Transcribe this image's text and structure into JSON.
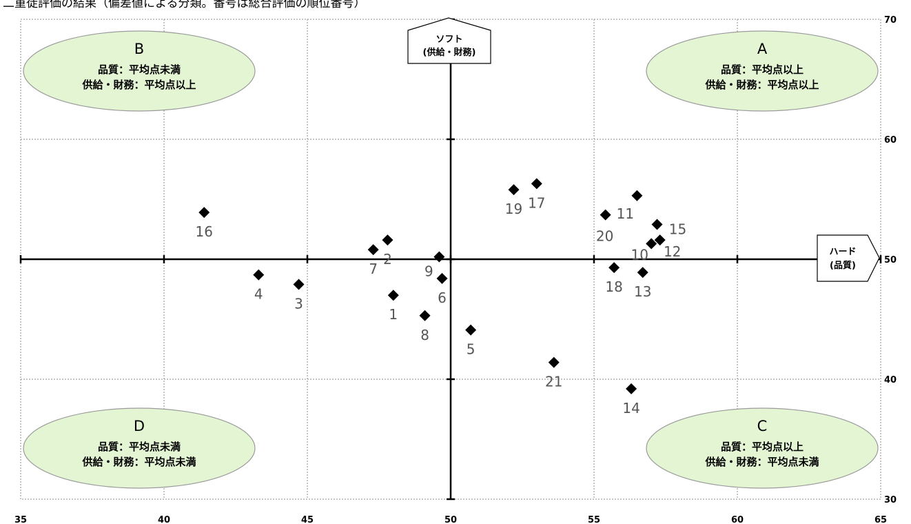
{
  "title": "二重徒評価の結果（偏差値による分類。番号は総合評価の順位番号）",
  "chart_data": {
    "type": "scatter",
    "title": "二重徒評価の結果（偏差値による分類。番号は総合評価の順位番号）",
    "xlim": [
      35,
      65
    ],
    "ylim": [
      30,
      70
    ],
    "x_ticks": [
      "35",
      "40",
      "45",
      "50",
      "55",
      "60",
      "65"
    ],
    "y_ticks": [
      "30",
      "40",
      "50",
      "60",
      "70"
    ],
    "grid": true,
    "x_axis_label": [
      "ハード",
      "(品質)"
    ],
    "y_axis_label": [
      "ソフト",
      "(供給・財務)"
    ],
    "quadrants": [
      {
        "id": "B",
        "line1": "品質：平均点未満",
        "line2": "供給・財務：平均点以上"
      },
      {
        "id": "A",
        "line1": "品質：平均点以上",
        "line2": "供給・財務：平均点以上"
      },
      {
        "id": "D",
        "line1": "品質：平均点未満",
        "line2": "供給・財務：平均点未満"
      },
      {
        "id": "C",
        "line1": "品質：平均点以上",
        "line2": "供給・財務：平均点未満"
      }
    ],
    "points": [
      {
        "label": "1",
        "x": 48.0,
        "y": 47.0
      },
      {
        "label": "2",
        "x": 47.8,
        "y": 51.6
      },
      {
        "label": "3",
        "x": 44.7,
        "y": 47.9
      },
      {
        "label": "4",
        "x": 43.3,
        "y": 48.7
      },
      {
        "label": "5",
        "x": 50.7,
        "y": 44.1
      },
      {
        "label": "6",
        "x": 49.7,
        "y": 48.4
      },
      {
        "label": "7",
        "x": 47.3,
        "y": 50.8
      },
      {
        "label": "8",
        "x": 49.1,
        "y": 45.3
      },
      {
        "label": "9",
        "x": 49.6,
        "y": 50.2
      },
      {
        "label": "10",
        "x": 57.0,
        "y": 51.3
      },
      {
        "label": "11",
        "x": 56.5,
        "y": 55.3
      },
      {
        "label": "12",
        "x": 57.3,
        "y": 51.6
      },
      {
        "label": "13",
        "x": 56.7,
        "y": 48.9
      },
      {
        "label": "14",
        "x": 56.3,
        "y": 39.2
      },
      {
        "label": "15",
        "x": 57.2,
        "y": 52.9
      },
      {
        "label": "16",
        "x": 41.4,
        "y": 53.9
      },
      {
        "label": "17",
        "x": 53.0,
        "y": 56.3
      },
      {
        "label": "18",
        "x": 55.7,
        "y": 49.3
      },
      {
        "label": "19",
        "x": 52.2,
        "y": 55.8
      },
      {
        "label": "20",
        "x": 55.4,
        "y": 53.7
      },
      {
        "label": "21",
        "x": 53.6,
        "y": 41.4
      }
    ]
  },
  "colors": {
    "ellipse_fill": "#e4f5d4",
    "ellipse_stroke": "#9a9a9a",
    "marker": "#000000",
    "point_label": "#555555",
    "grid": "#8c8c8c"
  }
}
